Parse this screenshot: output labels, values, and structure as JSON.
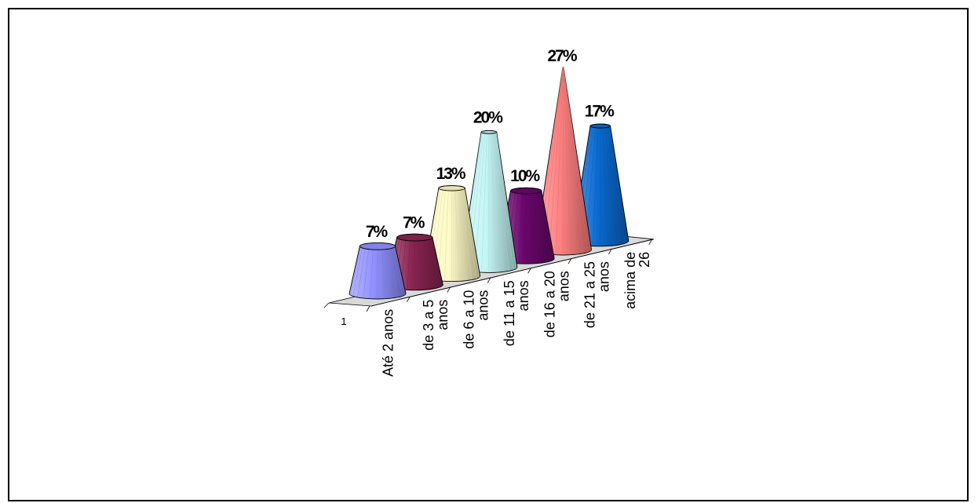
{
  "chart_data": {
    "type": "bar",
    "bar_shape": "3d-cone",
    "categories": [
      "Até 2 anos",
      "de 3 a 5 anos",
      "de 6 a 10 anos",
      "de 11 a 15 anos",
      "de 16 a 20 anos",
      "de 21 a 25 anos",
      "acima de 26"
    ],
    "category_lines": [
      [
        "Até 2 anos"
      ],
      [
        "de 3 a 5",
        "anos"
      ],
      [
        "de 6 a 10",
        "anos"
      ],
      [
        "de 11 a 15",
        "anos"
      ],
      [
        "de 16 a 20",
        "anos"
      ],
      [
        "de 21 a 25",
        "anos"
      ],
      [
        "acima de",
        "26"
      ]
    ],
    "series": [
      {
        "name": "1",
        "values": [
          7,
          7,
          13,
          20,
          10,
          27,
          17
        ],
        "labels": [
          "7%",
          "7%",
          "13%",
          "20%",
          "10%",
          "27%",
          "17%"
        ]
      }
    ],
    "colors": [
      "#8f8fff",
      "#8a2452",
      "#fffbc6",
      "#c4f6f6",
      "#6b066d",
      "#ff8080",
      "#0a6ad0"
    ],
    "ylim": [
      0,
      30
    ],
    "legend": "none",
    "grid": false
  }
}
